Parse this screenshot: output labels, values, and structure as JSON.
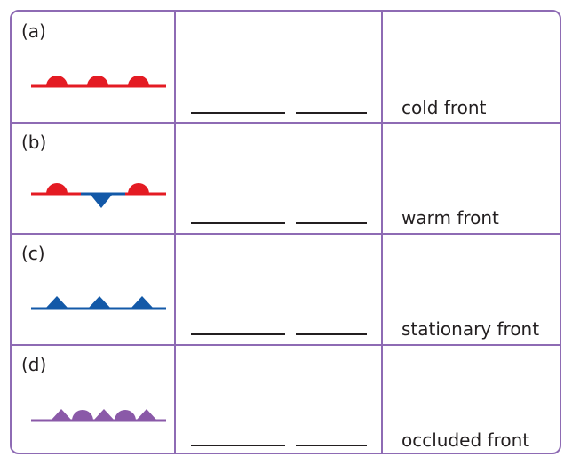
{
  "rows": [
    {
      "letter": "(a)",
      "answer": "cold front",
      "symbol": "red-semicircle-front-symbol"
    },
    {
      "letter": "(b)",
      "answer": "warm front",
      "symbol": "red-blue-alternating-front-symbol"
    },
    {
      "letter": "(c)",
      "answer": "stationary front",
      "symbol": "blue-triangle-front-symbol"
    },
    {
      "letter": "(d)",
      "answer": "occluded front",
      "symbol": "purple-triangle-semicircle-front-symbol"
    }
  ],
  "colors": {
    "border": "#8e6bb4",
    "red": "#e41b23",
    "blue": "#1359a8",
    "purple": "#8a59a8",
    "text": "#231f20"
  }
}
